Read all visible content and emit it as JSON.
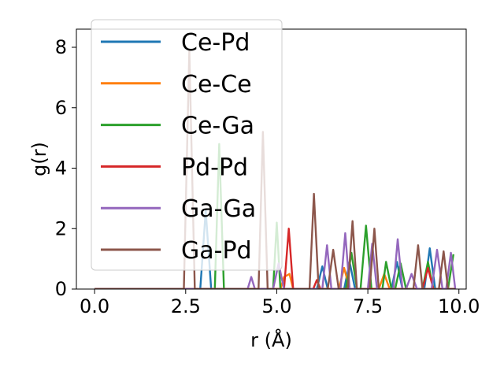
{
  "chart_data": {
    "type": "line",
    "title": "",
    "xlabel": "r (Å)",
    "ylabel": "g(r)",
    "xlim": [
      -0.5,
      10.2
    ],
    "ylim": [
      0,
      8.6
    ],
    "xticks": [
      "0.0",
      "2.5",
      "5.0",
      "7.5",
      "10.0"
    ],
    "yticks": [
      "0",
      "2",
      "4",
      "6",
      "8"
    ],
    "xtick_values": [
      0,
      2.5,
      5.0,
      7.5,
      10.0
    ],
    "ytick_values": [
      0,
      2,
      4,
      6,
      8
    ],
    "grid": false,
    "legend_position": "upper-left",
    "series": [
      {
        "name": "Ce-Pd",
        "color": "#1f77b4",
        "points": [
          [
            0,
            0
          ],
          [
            2.9,
            0
          ],
          [
            3.05,
            2.6
          ],
          [
            3.2,
            0
          ],
          [
            3.5,
            0
          ],
          [
            6.1,
            0
          ],
          [
            6.25,
            0.75
          ],
          [
            6.4,
            0
          ],
          [
            6.85,
            0
          ],
          [
            7.0,
            0.9
          ],
          [
            7.15,
            0
          ],
          [
            8.15,
            0
          ],
          [
            8.3,
            0.9
          ],
          [
            8.45,
            0
          ],
          [
            9.05,
            0
          ],
          [
            9.2,
            1.35
          ],
          [
            9.35,
            0
          ],
          [
            9.9,
            0
          ]
        ]
      },
      {
        "name": "Ce-Ce",
        "color": "#ff7f0e",
        "points": [
          [
            0,
            0
          ],
          [
            5.1,
            0
          ],
          [
            5.2,
            0.4
          ],
          [
            5.35,
            0.5
          ],
          [
            5.45,
            0
          ],
          [
            6.7,
            0
          ],
          [
            6.85,
            0.7
          ],
          [
            7.0,
            0
          ],
          [
            7.8,
            0
          ],
          [
            7.95,
            0.5
          ],
          [
            8.1,
            0
          ],
          [
            9.9,
            0
          ]
        ]
      },
      {
        "name": "Ce-Ga",
        "color": "#2ca02c",
        "points": [
          [
            0,
            0
          ],
          [
            3.3,
            0
          ],
          [
            3.42,
            4.8
          ],
          [
            3.55,
            0
          ],
          [
            4.9,
            0
          ],
          [
            5.0,
            2.2
          ],
          [
            5.1,
            0
          ],
          [
            6.9,
            0
          ],
          [
            7.05,
            1.2
          ],
          [
            7.2,
            0
          ],
          [
            7.3,
            0
          ],
          [
            7.45,
            2.1
          ],
          [
            7.6,
            0
          ],
          [
            7.9,
            0
          ],
          [
            8.0,
            0.9
          ],
          [
            8.15,
            0
          ],
          [
            8.25,
            0
          ],
          [
            8.4,
            0.85
          ],
          [
            8.55,
            0
          ],
          [
            9.0,
            0
          ],
          [
            9.15,
            0.9
          ],
          [
            9.3,
            0
          ],
          [
            9.7,
            0
          ],
          [
            9.85,
            1.15
          ]
        ]
      },
      {
        "name": "Pd-Pd",
        "color": "#d62728",
        "points": [
          [
            0,
            0
          ],
          [
            5.2,
            0
          ],
          [
            5.33,
            2.0
          ],
          [
            5.45,
            0
          ],
          [
            6.0,
            0
          ],
          [
            6.1,
            0.3
          ],
          [
            6.2,
            0
          ],
          [
            9.0,
            0
          ],
          [
            9.15,
            0.7
          ],
          [
            9.3,
            0
          ],
          [
            9.9,
            0
          ]
        ]
      },
      {
        "name": "Ga-Ga",
        "color": "#9467bd",
        "points": [
          [
            0,
            0
          ],
          [
            4.2,
            0
          ],
          [
            4.3,
            0.4
          ],
          [
            4.4,
            0
          ],
          [
            4.9,
            0
          ],
          [
            5.05,
            0.85
          ],
          [
            5.2,
            0
          ],
          [
            6.25,
            0
          ],
          [
            6.38,
            1.45
          ],
          [
            6.5,
            0
          ],
          [
            6.75,
            0
          ],
          [
            6.88,
            1.85
          ],
          [
            7.0,
            0
          ],
          [
            7.5,
            0
          ],
          [
            7.62,
            1.5
          ],
          [
            7.75,
            0
          ],
          [
            8.2,
            0
          ],
          [
            8.32,
            1.65
          ],
          [
            8.45,
            0
          ],
          [
            8.55,
            0
          ],
          [
            8.7,
            0.5
          ],
          [
            8.85,
            0
          ],
          [
            9.25,
            0
          ],
          [
            9.4,
            1.3
          ],
          [
            9.55,
            0
          ],
          [
            9.65,
            0
          ],
          [
            9.78,
            1.2
          ],
          [
            9.9,
            0
          ]
        ]
      },
      {
        "name": "Ga-Pd",
        "color": "#8c564b",
        "points": [
          [
            0,
            0
          ],
          [
            2.45,
            0
          ],
          [
            2.6,
            7.9
          ],
          [
            2.75,
            0
          ],
          [
            4.5,
            0
          ],
          [
            4.62,
            5.2
          ],
          [
            4.75,
            0
          ],
          [
            5.9,
            0
          ],
          [
            6.02,
            3.15
          ],
          [
            6.15,
            0
          ],
          [
            6.4,
            0
          ],
          [
            6.55,
            1.3
          ],
          [
            6.7,
            0
          ],
          [
            6.95,
            0
          ],
          [
            7.08,
            2.25
          ],
          [
            7.2,
            0
          ],
          [
            7.55,
            0
          ],
          [
            7.68,
            2.0
          ],
          [
            7.8,
            0
          ],
          [
            8.75,
            0
          ],
          [
            8.88,
            1.45
          ],
          [
            9.0,
            0
          ],
          [
            9.45,
            0
          ],
          [
            9.58,
            1.25
          ],
          [
            9.7,
            0
          ],
          [
            9.9,
            0
          ]
        ]
      }
    ]
  }
}
